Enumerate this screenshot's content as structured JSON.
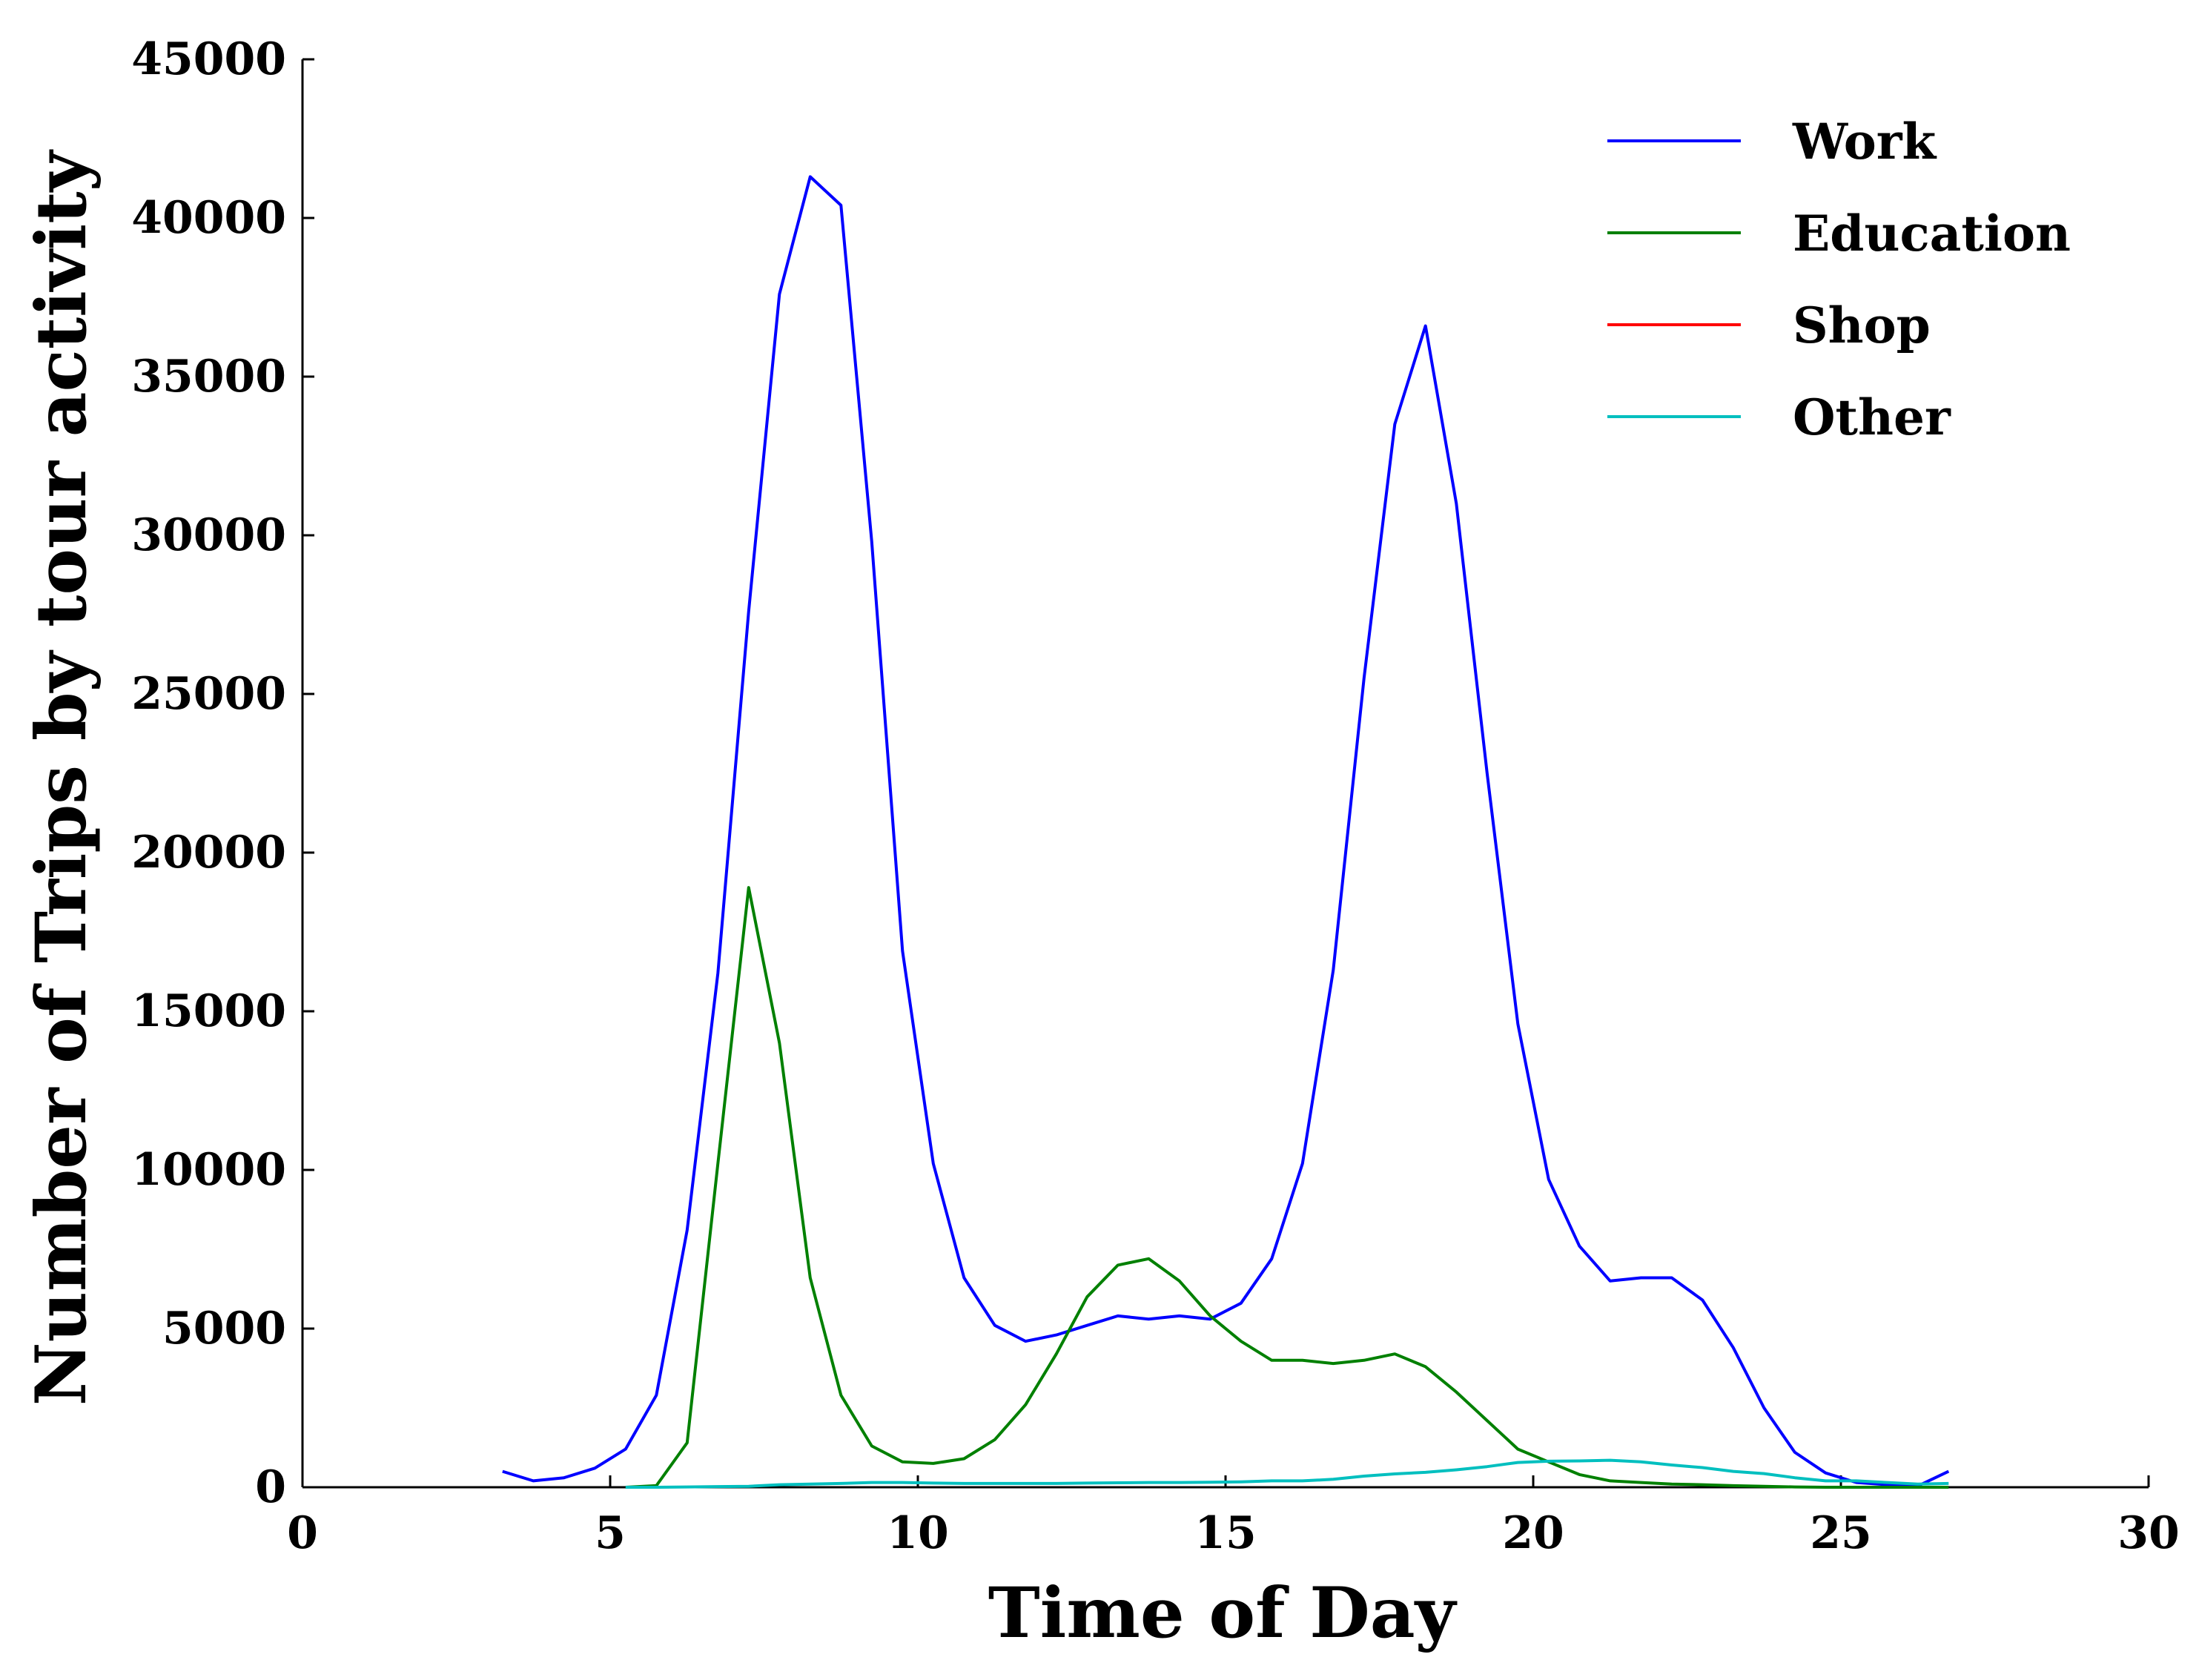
{
  "chart_data": {
    "type": "line",
    "xlabel": "Time of Day",
    "ylabel": "Number of Trips by tour activity",
    "xlim": [
      0,
      30
    ],
    "ylim": [
      0,
      45000
    ],
    "xticks": [
      0,
      5,
      10,
      15,
      20,
      25,
      30
    ],
    "yticks": [
      0,
      5000,
      10000,
      15000,
      20000,
      25000,
      30000,
      35000,
      40000,
      45000
    ],
    "grid": false,
    "legend_position": "top-right",
    "series": [
      {
        "name": "Work",
        "color": "#0000ff",
        "x": [
          3.25,
          3.75,
          4.25,
          4.75,
          5.25,
          5.75,
          6.25,
          6.75,
          7.25,
          7.75,
          8.25,
          8.75,
          9.25,
          9.75,
          10.25,
          10.75,
          11.25,
          11.75,
          12.25,
          12.75,
          13.25,
          13.75,
          14.25,
          14.75,
          15.25,
          15.75,
          16.25,
          16.75,
          17.25,
          17.75,
          18.25,
          18.75,
          19.25,
          19.75,
          20.25,
          20.75,
          21.25,
          21.75,
          22.25,
          22.75,
          23.25,
          23.75,
          24.25,
          24.75,
          25.25,
          25.75,
          26.25,
          26.75
        ],
        "y": [
          500,
          200,
          300,
          600,
          1200,
          2900,
          8100,
          16200,
          27600,
          37600,
          41300,
          40400,
          29800,
          16900,
          10200,
          6600,
          5100,
          4600,
          4800,
          5100,
          5400,
          5300,
          5400,
          5300,
          5800,
          7200,
          10200,
          16300,
          25500,
          33500,
          36600,
          31000,
          22500,
          14600,
          9700,
          7600,
          6500,
          6600,
          6600,
          5900,
          4400,
          2500,
          1100,
          450,
          150,
          80,
          40,
          500
        ]
      },
      {
        "name": "Education",
        "color": "#008000",
        "x": [
          5.25,
          5.75,
          6.25,
          6.75,
          7.25,
          7.75,
          8.25,
          8.75,
          9.25,
          9.75,
          10.25,
          10.75,
          11.25,
          11.75,
          12.25,
          12.75,
          13.25,
          13.75,
          14.25,
          14.75,
          15.25,
          15.75,
          16.25,
          16.75,
          17.25,
          17.75,
          18.25,
          18.75,
          19.25,
          19.75,
          20.25,
          20.75,
          21.25,
          21.75,
          22.25,
          22.75,
          23.25,
          23.75,
          24.25,
          24.75,
          25.25,
          25.75,
          26.25,
          26.75
        ],
        "y": [
          0,
          50,
          1400,
          10200,
          18900,
          14000,
          6600,
          2900,
          1300,
          800,
          750,
          900,
          1500,
          2600,
          4200,
          6000,
          7000,
          7200,
          6500,
          5400,
          4600,
          4000,
          4000,
          3900,
          4000,
          4200,
          3800,
          3000,
          2100,
          1200,
          800,
          400,
          200,
          150,
          100,
          80,
          50,
          30,
          10,
          0,
          0,
          0,
          0,
          0
        ]
      },
      {
        "name": "Shop",
        "color": "#ff0000",
        "x": [],
        "y": []
      },
      {
        "name": "Other",
        "color": "#00bfbf",
        "x": [
          5.25,
          5.75,
          6.25,
          6.75,
          7.25,
          7.75,
          8.25,
          8.75,
          9.25,
          9.75,
          10.25,
          10.75,
          11.25,
          11.75,
          12.25,
          12.75,
          13.25,
          13.75,
          14.25,
          14.75,
          15.25,
          15.75,
          16.25,
          16.75,
          17.25,
          17.75,
          18.25,
          18.75,
          19.25,
          19.75,
          20.25,
          20.75,
          21.25,
          21.75,
          22.25,
          22.75,
          23.25,
          23.75,
          24.25,
          24.75,
          25.25,
          25.75,
          26.25,
          26.75
        ],
        "y": [
          0,
          0,
          10,
          20,
          30,
          80,
          100,
          120,
          150,
          150,
          130,
          120,
          120,
          120,
          120,
          130,
          140,
          150,
          150,
          160,
          170,
          200,
          200,
          250,
          350,
          420,
          470,
          550,
          650,
          780,
          820,
          830,
          850,
          800,
          700,
          620,
          500,
          430,
          300,
          200,
          200,
          150,
          100,
          120
        ]
      }
    ]
  }
}
